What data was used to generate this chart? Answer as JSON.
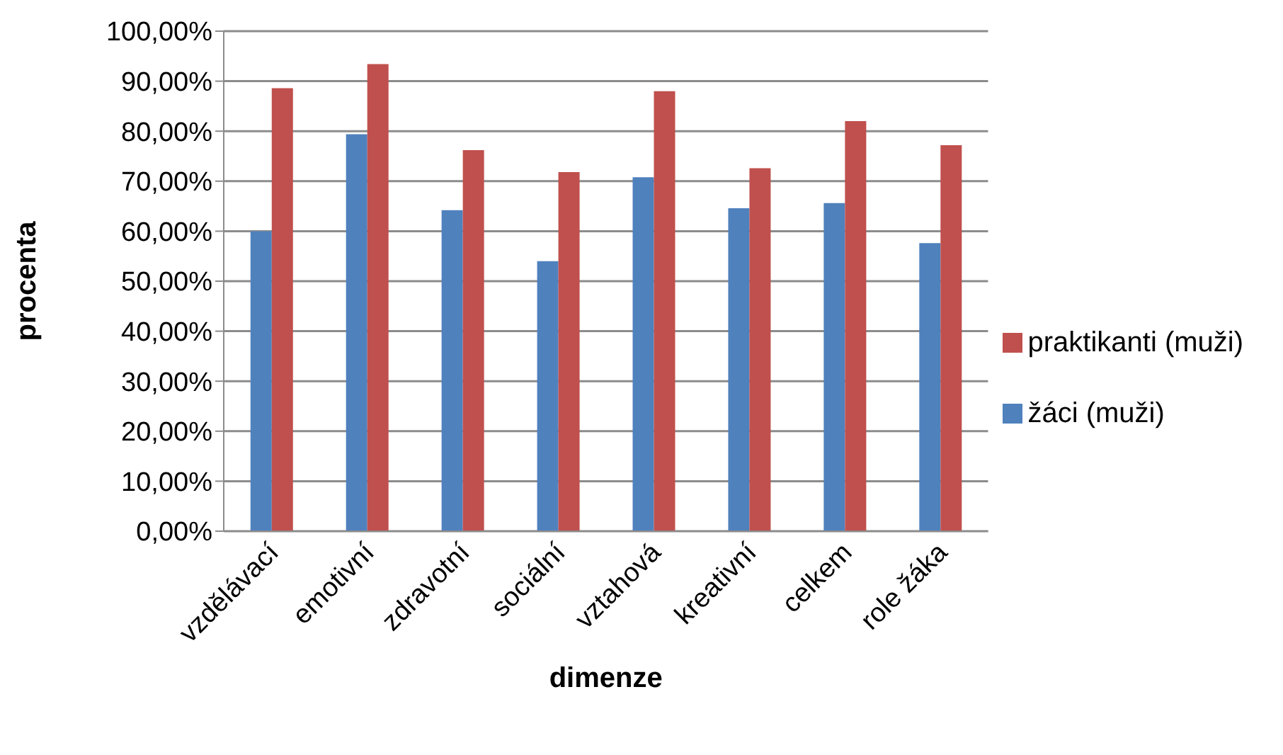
{
  "chart_data": {
    "type": "bar",
    "xlabel": "dimenze",
    "ylabel": "procenta",
    "categories": [
      "vzdělávací",
      "emotivní",
      "zdravotní",
      "sociální",
      "vztahová",
      "kreativní",
      "celkem",
      "role žáka"
    ],
    "series": [
      {
        "name": "žáci (muži)",
        "color": "#4f81bd",
        "values": [
          60,
          79.4,
          64.2,
          54,
          70.8,
          64.6,
          65.6,
          57.6
        ]
      },
      {
        "name": "praktikanti (muži)",
        "color": "#c0504d",
        "values": [
          88.6,
          93.4,
          76.2,
          71.8,
          88,
          72.6,
          82,
          77.2
        ]
      }
    ],
    "ylim": [
      0,
      100
    ],
    "yticks": [
      {
        "value": 0,
        "label": "0,00%"
      },
      {
        "value": 10,
        "label": "10,00%"
      },
      {
        "value": 20,
        "label": "20,00%"
      },
      {
        "value": 30,
        "label": "30,00%"
      },
      {
        "value": 40,
        "label": "40,00%"
      },
      {
        "value": 50,
        "label": "50,00%"
      },
      {
        "value": 60,
        "label": "60,00%"
      },
      {
        "value": 70,
        "label": "70,00%"
      },
      {
        "value": 80,
        "label": "80,00%"
      },
      {
        "value": 90,
        "label": "90,00%"
      },
      {
        "value": 100,
        "label": "100,00%"
      }
    ],
    "grid": "y",
    "legend": "right"
  }
}
